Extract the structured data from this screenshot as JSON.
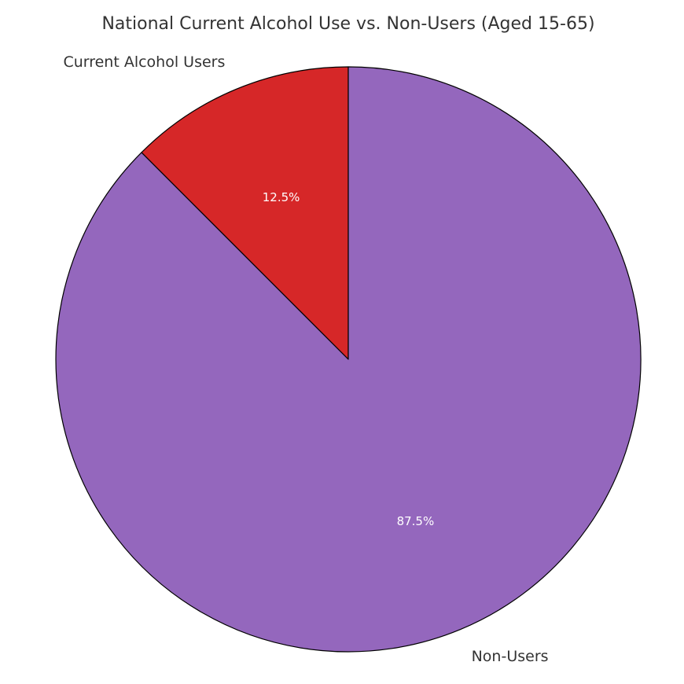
{
  "chart_data": {
    "type": "pie",
    "title": "National Current Alcohol Use vs. Non-Users (Aged 15-65)",
    "start_angle_deg": 90,
    "direction": "counterclockwise",
    "slices": [
      {
        "label": "Current Alcohol Users",
        "value": 12.5,
        "pct_label": "12.5%",
        "color": "#d62728"
      },
      {
        "label": "Non-Users",
        "value": 87.5,
        "pct_label": "87.5%",
        "color": "#9467bd"
      }
    ],
    "edge_color": "#000000"
  }
}
